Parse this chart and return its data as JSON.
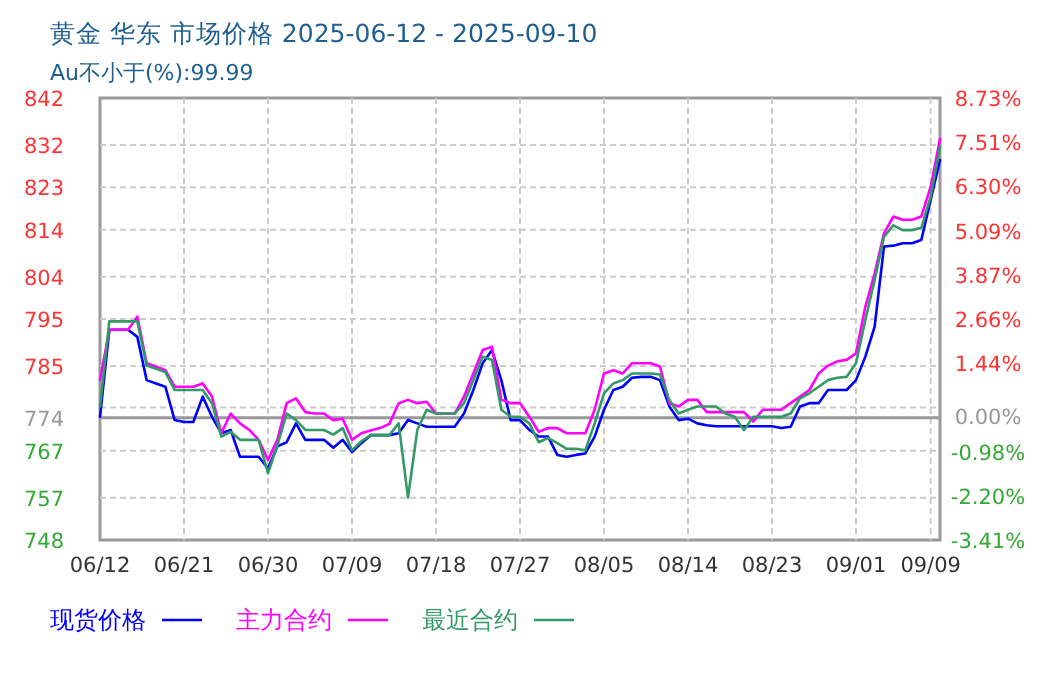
{
  "chart_data": {
    "type": "line",
    "title": "黄金 华东 市场价格 2025-06-12 - 2025-09-10",
    "subtitle": "Au不小于(%):99.99",
    "x": [
      "2025-06-12",
      "2025-06-13",
      "2025-06-14",
      "2025-06-15",
      "2025-06-16",
      "2025-06-17",
      "2025-06-18",
      "2025-06-19",
      "2025-06-20",
      "2025-06-21",
      "2025-06-22",
      "2025-06-23",
      "2025-06-24",
      "2025-06-25",
      "2025-06-26",
      "2025-06-27",
      "2025-06-28",
      "2025-06-29",
      "2025-06-30",
      "2025-07-01",
      "2025-07-02",
      "2025-07-03",
      "2025-07-04",
      "2025-07-05",
      "2025-07-06",
      "2025-07-07",
      "2025-07-08",
      "2025-07-09",
      "2025-07-10",
      "2025-07-11",
      "2025-07-12",
      "2025-07-13",
      "2025-07-14",
      "2025-07-15",
      "2025-07-16",
      "2025-07-17",
      "2025-07-18",
      "2025-07-19",
      "2025-07-20",
      "2025-07-21",
      "2025-07-22",
      "2025-07-23",
      "2025-07-24",
      "2025-07-25",
      "2025-07-26",
      "2025-07-27",
      "2025-07-28",
      "2025-07-29",
      "2025-07-30",
      "2025-07-31",
      "2025-08-01",
      "2025-08-02",
      "2025-08-03",
      "2025-08-04",
      "2025-08-05",
      "2025-08-06",
      "2025-08-07",
      "2025-08-08",
      "2025-08-09",
      "2025-08-10",
      "2025-08-11",
      "2025-08-12",
      "2025-08-13",
      "2025-08-14",
      "2025-08-15",
      "2025-08-16",
      "2025-08-17",
      "2025-08-18",
      "2025-08-19",
      "2025-08-20",
      "2025-08-21",
      "2025-08-22",
      "2025-08-23",
      "2025-08-24",
      "2025-08-25",
      "2025-08-26",
      "2025-08-27",
      "2025-08-28",
      "2025-08-29",
      "2025-08-30",
      "2025-08-31",
      "2025-09-01",
      "2025-09-02",
      "2025-09-03",
      "2025-09-04",
      "2025-09-05",
      "2025-09-06",
      "2025-09-07",
      "2025-09-08",
      "2025-09-09",
      "2025-09-10"
    ],
    "series": [
      {
        "name": "现货价格",
        "color": "#0000ff",
        "values": [
          774.2,
          792.7,
          792.7,
          792.7,
          791.2,
          782,
          781.3,
          780.6,
          773.5,
          773.1,
          773.1,
          778.5,
          774.2,
          770.7,
          771.4,
          765.7,
          765.7,
          765.7,
          763.2,
          767.9,
          768.8,
          772.8,
          769.3,
          769.3,
          769.3,
          767.6,
          769.3,
          766.7,
          768.6,
          770.3,
          770.3,
          770.3,
          770.7,
          773.5,
          772.8,
          772.1,
          772.1,
          772.1,
          772.1,
          774.9,
          779.9,
          785.6,
          788.4,
          782,
          773.5,
          773.5,
          771.4,
          770,
          770,
          766.1,
          765.7,
          766.1,
          766.4,
          770,
          775.7,
          779.9,
          780.6,
          782.5,
          782.7,
          782.7,
          782,
          776.4,
          773.5,
          773.8,
          772.8,
          772.4,
          772.2,
          772.2,
          772.2,
          772.2,
          772.2,
          772.2,
          772.2,
          771.8,
          772.1,
          776.4,
          777.1,
          777.1,
          779.9,
          779.9,
          779.9,
          782,
          787,
          793.4,
          810.4,
          810.6,
          811.1,
          811.1,
          811.8,
          820.3,
          828.8
        ]
      },
      {
        "name": "主力合约",
        "color": "#ff00ff",
        "values": [
          782,
          792.7,
          792.7,
          792.7,
          795.5,
          785.6,
          784.9,
          784.1,
          780.6,
          780.6,
          780.6,
          781.3,
          778.5,
          770.7,
          774.9,
          772.8,
          771.4,
          769.3,
          765,
          769.3,
          777.1,
          778.1,
          775.2,
          774.9,
          774.9,
          773.5,
          773.8,
          769.3,
          770.7,
          771.3,
          771.8,
          772.7,
          777.1,
          777.8,
          777.1,
          777.4,
          774.9,
          774.9,
          774.9,
          778.5,
          783.4,
          788.4,
          789.1,
          777.8,
          777.1,
          777.1,
          774.2,
          771,
          771.8,
          771.8,
          770.7,
          770.7,
          770.7,
          775.7,
          783.4,
          784.1,
          783.4,
          785.6,
          785.6,
          785.6,
          784.9,
          777.1,
          776.4,
          777.8,
          777.8,
          775.2,
          775.2,
          775.2,
          775.2,
          775.2,
          773.2,
          775.7,
          775.7,
          775.7,
          777.1,
          778.5,
          779.9,
          783.4,
          785.1,
          786,
          786.3,
          787.7,
          797.6,
          804.7,
          813.2,
          816.8,
          816.1,
          816.1,
          816.8,
          823.1,
          833.3
        ]
      },
      {
        "name": "最近合约",
        "color": "#339966",
        "values": [
          776.4,
          794.5,
          794.5,
          794.5,
          794.5,
          785.1,
          784.4,
          783.7,
          779.9,
          779.9,
          779.9,
          779.9,
          777.1,
          770,
          771,
          769.3,
          769.3,
          769.3,
          762.2,
          768.1,
          774.9,
          773.5,
          771.4,
          771.4,
          771.4,
          770.4,
          771.8,
          767.1,
          769,
          770.3,
          770.3,
          770.3,
          772.8,
          757,
          771.4,
          775.7,
          774.9,
          774.9,
          774.9,
          777.1,
          782,
          787,
          786.3,
          775.7,
          774.2,
          774.2,
          772.8,
          768.8,
          769.7,
          768.6,
          767.4,
          767.4,
          767.1,
          772.8,
          779.2,
          781.3,
          782,
          783.4,
          783.4,
          783.4,
          783.2,
          777.8,
          774.9,
          775.7,
          776.4,
          776.4,
          776.4,
          774.9,
          774.2,
          771.4,
          774.2,
          774.2,
          774.2,
          774.2,
          774.9,
          778.1,
          779.2,
          780.6,
          782,
          782.5,
          782.7,
          785.6,
          794.8,
          803.3,
          812.5,
          814.9,
          813.9,
          813.9,
          814.4,
          821,
          831.7
        ]
      }
    ],
    "xlim": [
      "2025-06-12",
      "2025-09-10"
    ],
    "xticks": [
      {
        "value": "2025-06-12",
        "label": "06/12"
      },
      {
        "value": "2025-06-21",
        "label": "06/21"
      },
      {
        "value": "2025-06-30",
        "label": "06/30"
      },
      {
        "value": "2025-07-09",
        "label": "07/09"
      },
      {
        "value": "2025-07-18",
        "label": "07/18"
      },
      {
        "value": "2025-07-27",
        "label": "07/27"
      },
      {
        "value": "2025-08-05",
        "label": "08/05"
      },
      {
        "value": "2025-08-14",
        "label": "08/14"
      },
      {
        "value": "2025-08-23",
        "label": "08/23"
      },
      {
        "value": "2025-09-01",
        "label": "09/01"
      },
      {
        "value": "2025-09-09",
        "label": "09/09"
      }
    ],
    "ylim": [
      748,
      842
    ],
    "yticks": [
      842,
      832,
      823,
      814,
      804,
      795,
      785,
      {
        "value": 776.2,
        "label": null
      },
      774,
      767,
      757,
      748
    ],
    "y2lim": [
      -3.41,
      8.73
    ],
    "y2ticks": [
      {
        "value": 8.73,
        "label": "8.73%"
      },
      {
        "value": 7.51,
        "label": "7.51%"
      },
      {
        "value": 6.3,
        "label": "6.30%"
      },
      {
        "value": 5.09,
        "label": "5.09%"
      },
      {
        "value": 3.87,
        "label": "3.87%"
      },
      {
        "value": 2.66,
        "label": "2.66%"
      },
      {
        "value": 1.44,
        "label": "1.44%"
      },
      {
        "value": 0,
        "label": "0.00%"
      },
      {
        "value": -0.98,
        "label": "-0.98%"
      },
      {
        "value": -2.2,
        "label": "-2.20%"
      },
      {
        "value": -3.41,
        "label": "-3.41%"
      }
    ],
    "ref_lines": [
      {
        "axis": "y",
        "value": 774,
        "color": "#999999"
      }
    ],
    "grid": true,
    "legend": "bottom"
  }
}
